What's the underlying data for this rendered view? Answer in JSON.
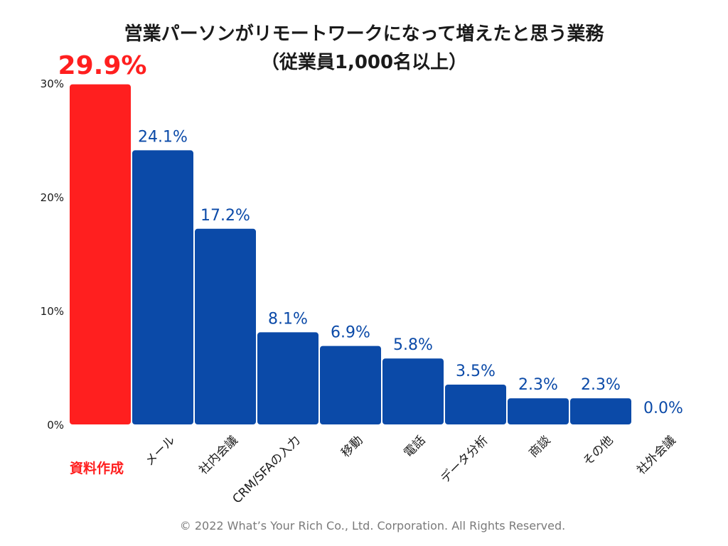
{
  "chart_data": {
    "type": "bar",
    "title": "営業パーソンがリモートワークになって増えたと思う業務",
    "subtitle": "（従業員1,000名以上）",
    "categories": [
      "資料作成",
      "メール",
      "社内会議",
      "CRM/SFAの入力",
      "移動",
      "電話",
      "データ分析",
      "商談",
      "その他",
      "社外会議"
    ],
    "values": [
      29.9,
      24.1,
      17.2,
      8.1,
      6.9,
      5.8,
      3.5,
      2.3,
      2.3,
      0.0
    ],
    "value_labels": [
      "29.9%",
      "24.1%",
      "17.2%",
      "8.1%",
      "6.9%",
      "5.8%",
      "3.5%",
      "2.3%",
      "2.3%",
      "0.0%"
    ],
    "highlight_index": 0,
    "y_ticks": [
      0,
      10,
      20,
      30
    ],
    "y_tick_labels": [
      "0%",
      "10%",
      "20%",
      "30%"
    ],
    "ylim": [
      0,
      30
    ],
    "grid": false,
    "colors": {
      "highlight": "#ff1f1f",
      "bar": "#0b4aa8",
      "value_label": "#0b4aa8",
      "text": "#1a1a1a"
    }
  },
  "footer": {
    "copyright": "© 2022 What’s Your Rich Co., Ltd. Corporation. All Rights Reserved."
  }
}
